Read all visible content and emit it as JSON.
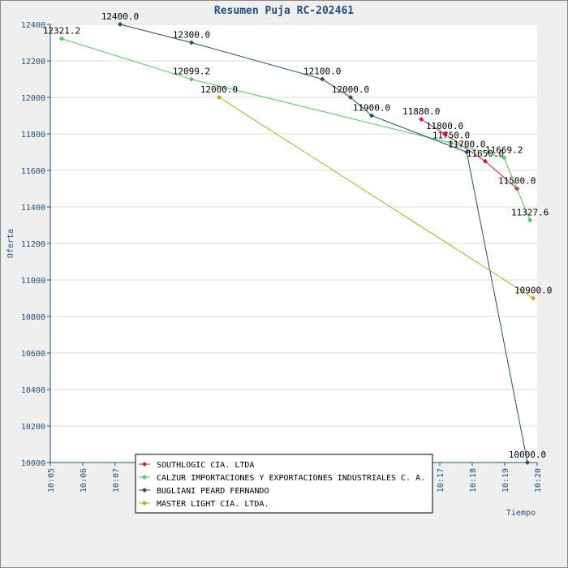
{
  "chart_data": {
    "type": "line",
    "title": "Resumen Puja RC-202461",
    "y_label": "Oferta",
    "x_label": "Tiempo",
    "xlim": [
      605,
      620
    ],
    "ylim": [
      10000,
      12400
    ],
    "xticks": [
      {
        "value": 605,
        "label": "10:05"
      },
      {
        "value": 606,
        "label": "10:06"
      },
      {
        "value": 607,
        "label": "10:07"
      },
      {
        "value": 617,
        "label": "10:17"
      },
      {
        "value": 618,
        "label": "10:18"
      },
      {
        "value": 619,
        "label": "10:19"
      },
      {
        "value": 620,
        "label": "10:20"
      }
    ],
    "yticks": [
      10000,
      10200,
      10400,
      10600,
      10800,
      11000,
      11200,
      11400,
      11600,
      11800,
      12000,
      12200,
      12400
    ],
    "grid": true,
    "legend": "bottom",
    "series": [
      {
        "name": "SOUTHLOGIC CIA. LTDA",
        "color": "#e0103a",
        "x": [
          616.43,
          617.15,
          618.4,
          619.38
        ],
        "values": [
          11880,
          11800,
          11650,
          11500
        ],
        "value_labels": [
          "11880.0",
          "11800.0",
          "11650.0",
          "11500.0"
        ]
      },
      {
        "name": "CALZUR IMPORTACIONES Y EXPORTACIONES INDUSTRIALES C. A.",
        "color": "#44cc55",
        "x": [
          605.35,
          609.35,
          617.35,
          618.98,
          619.78
        ],
        "values": [
          12321.2,
          12099.2,
          11750,
          11669.2,
          11327.6
        ],
        "value_labels": [
          "12321.2",
          "12099.2",
          "11750.0",
          "11669.2",
          "11327.6"
        ]
      },
      {
        "name": "BUGLIANI PEARD FERNANDO",
        "color": "#1f4f6f",
        "x": [
          607.15,
          609.35,
          613.38,
          614.25,
          614.9,
          617.83,
          619.7
        ],
        "values": [
          12400,
          12300,
          12100,
          12000,
          11900,
          11700,
          10000
        ],
        "value_labels": [
          "12400.0",
          "12300.0",
          "12100.0",
          "12000.0",
          "11900.0",
          "11700.0",
          "10000.0"
        ]
      },
      {
        "name": "MASTER LIGHT CIA. LTDA.",
        "color": "#c8a020",
        "x": [
          610.2,
          619.88
        ],
        "values": [
          12000,
          10900
        ],
        "value_labels": [
          "12000.0",
          "10900.0"
        ]
      }
    ]
  }
}
